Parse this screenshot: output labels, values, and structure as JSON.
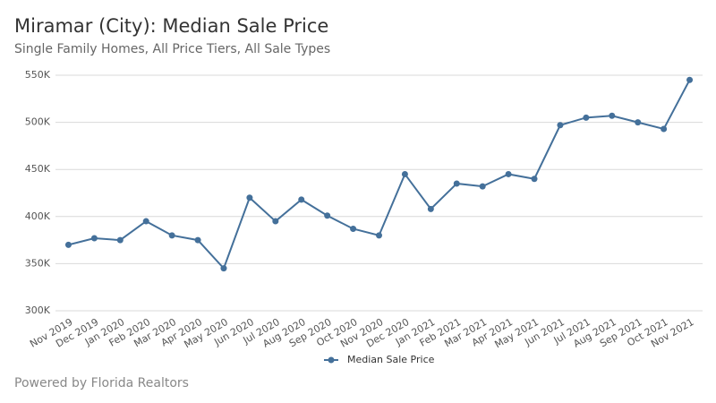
{
  "chart_data": {
    "type": "line",
    "title": "Miramar (City): Median Sale Price",
    "subtitle": "Single Family Homes, All Price Tiers, All Sale Types",
    "footer": "Powered by Florida Realtors",
    "categories": [
      "Nov 2019",
      "Dec 2019",
      "Jan 2020",
      "Feb 2020",
      "Mar 2020",
      "Apr 2020",
      "May 2020",
      "Jun 2020",
      "Jul 2020",
      "Aug 2020",
      "Sep 2020",
      "Oct 2020",
      "Nov 2020",
      "Dec 2020",
      "Jan 2021",
      "Feb 2021",
      "Mar 2021",
      "Apr 2021",
      "May 2021",
      "Jun 2021",
      "Jul 2021",
      "Aug 2021",
      "Sep 2021",
      "Oct 2021",
      "Nov 2021"
    ],
    "series": [
      {
        "name": "Median Sale Price",
        "color": "#44709a",
        "values": [
          370000,
          377000,
          375000,
          395000,
          380000,
          375000,
          345000,
          420000,
          395000,
          418000,
          401000,
          387000,
          380000,
          445000,
          408000,
          435000,
          432000,
          445000,
          440000,
          497000,
          505000,
          507000,
          500000,
          493000,
          545000
        ]
      }
    ],
    "ylim": [
      300000,
      550000
    ],
    "yticks": [
      {
        "value": 300000,
        "label": "300K"
      },
      {
        "value": 350000,
        "label": "350K"
      },
      {
        "value": 400000,
        "label": "400K"
      },
      {
        "value": 450000,
        "label": "450K"
      },
      {
        "value": 500000,
        "label": "500K"
      },
      {
        "value": 550000,
        "label": "550K"
      }
    ],
    "grid": true,
    "legend": "bottom"
  }
}
